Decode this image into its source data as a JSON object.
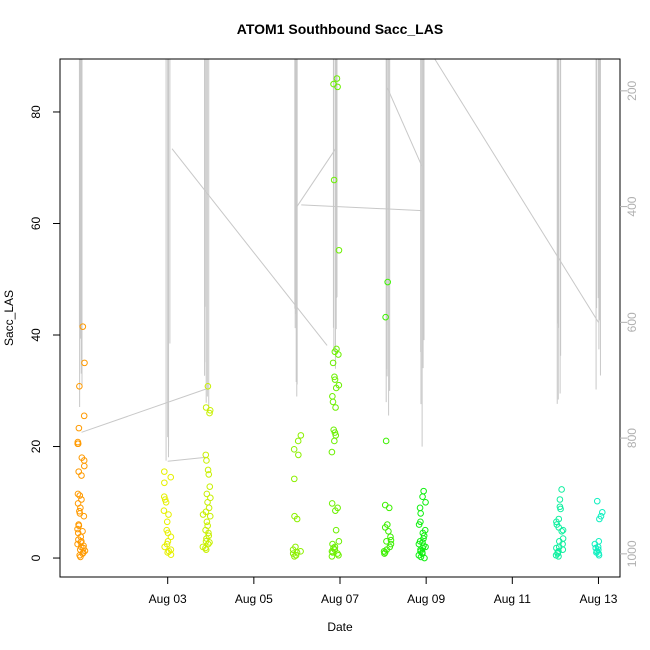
{
  "chart_data": {
    "type": "scatter",
    "title": "ATOM1 Southbound Sacc_LAS",
    "xlabel": "Date",
    "ylabel": "Sacc_LAS",
    "xlim": [
      "2016-07-31T12:00",
      "2016-08-13T12:00"
    ],
    "ylim": [
      -3.4,
      89.5
    ],
    "y_ticks": [
      0,
      20,
      40,
      60,
      80
    ],
    "x_ticks": [
      {
        "label": "Aug 03",
        "date": "2016-08-03"
      },
      {
        "label": "Aug 05",
        "date": "2016-08-05"
      },
      {
        "label": "Aug 07",
        "date": "2016-08-07"
      },
      {
        "label": "Aug 09",
        "date": "2016-08-09"
      },
      {
        "label": "Aug 11",
        "date": "2016-08-11"
      },
      {
        "label": "Aug 13",
        "date": "2016-08-13"
      }
    ],
    "secondary_axis": {
      "side": "right",
      "reversed": true,
      "ylim": [
        145,
        1040
      ],
      "ticks": [
        200,
        400,
        600,
        800,
        1000
      ],
      "color": "#b0b0b0"
    },
    "grid": false,
    "point_groups": [
      {
        "date": "2016-08-01",
        "color": "#ff9a00",
        "y_values": [
          41.5,
          35,
          30.8,
          25.5,
          23.3,
          20.8,
          20.5,
          20.5,
          18,
          17.5,
          16.5,
          15.5,
          14.8,
          11.5,
          11.2,
          10.5,
          9.8,
          9,
          8.4,
          8,
          7.5,
          6,
          5.8,
          5.2,
          4.8,
          4.5,
          3.8,
          3.3,
          3,
          2.8,
          2.5,
          2.2,
          2,
          1.8,
          1.5,
          1.3,
          1,
          0.8,
          0.5,
          0.2
        ]
      },
      {
        "date": "2016-08-03",
        "color": "#e6f000",
        "y_values": [
          15.5,
          14.5,
          13.5,
          11,
          10.5,
          10,
          8.5,
          7.8,
          6.5,
          5,
          4.5,
          3.8,
          3,
          2.5,
          2,
          1.5,
          1.2,
          1,
          0.6
        ]
      },
      {
        "date": "2016-08-03.9",
        "color": "#c8f000",
        "y_values": [
          30.8,
          27,
          26.5,
          26,
          18.5,
          17.5,
          15.8,
          15,
          12.8,
          11.5,
          10.8,
          10,
          9,
          8.3,
          7.8,
          7.5,
          6.5,
          5.8,
          5,
          4.5,
          4,
          3.5,
          3,
          2.8,
          2.5,
          2,
          1.8,
          1.5
        ]
      },
      {
        "date": "2016-08-06",
        "color": "#8cf000",
        "y_values": [
          22,
          21,
          19.5,
          18.5,
          14.2,
          7.5,
          7,
          2,
          1.5,
          1.2,
          1,
          0.8,
          0.5,
          0.3
        ]
      },
      {
        "date": "2016-08-06.9",
        "color": "#6cf000",
        "y_values": [
          86,
          85,
          84.5,
          67.8,
          55.2,
          37.5,
          37,
          36.5,
          35,
          32.5,
          32,
          31,
          30.5,
          29,
          28,
          27,
          23,
          22.5,
          22,
          21,
          19,
          9.8,
          9,
          8.5,
          5,
          3,
          2.5,
          2,
          1.8,
          1.5,
          1.2,
          1,
          0.8,
          0.5,
          0.3
        ]
      },
      {
        "date": "2016-08-08.1",
        "color": "#3cf000",
        "y_values": [
          49.5,
          43.2,
          21,
          9.5,
          9,
          6,
          5.5,
          4.8,
          3.8,
          3.2,
          3,
          2.5,
          2,
          1.5,
          1.2,
          1,
          0.8
        ]
      },
      {
        "date": "2016-08-08.9",
        "color": "#10f010",
        "y_values": [
          12,
          11,
          10,
          9,
          8,
          6.5,
          6,
          5,
          4.5,
          4,
          3.5,
          3,
          2.8,
          2.5,
          2.2,
          2,
          1.8,
          1.5,
          1.2,
          1,
          0.8,
          0.5,
          0.2,
          0
        ]
      },
      {
        "date": "2016-08-12.1",
        "color": "#10f0a0",
        "y_values": [
          12.3,
          10.5,
          9.2,
          8.8,
          7,
          6.5,
          6,
          5.5,
          5,
          4.8,
          3.5,
          3,
          2.5,
          2,
          1.8,
          1.5,
          1.2,
          1,
          0.8,
          0.5,
          0.3
        ]
      },
      {
        "date": "2016-08-13",
        "color": "#10f0c0",
        "y_values": [
          10.2,
          8.2,
          7.5,
          7,
          3,
          2.5,
          2,
          1.8,
          1.5,
          1.2,
          1,
          0.8,
          0.5
        ]
      }
    ],
    "secondary_series": {
      "color": "#c8c8c8",
      "spikes": [
        {
          "date": "2016-08-01",
          "top": 145,
          "bottom": 800
        },
        {
          "date": "2016-08-03",
          "top": 145,
          "bottom": 850
        },
        {
          "date": "2016-08-03.9",
          "top": 145,
          "bottom": 790
        },
        {
          "date": "2016-08-06",
          "top": 145,
          "bottom": 780
        },
        {
          "date": "2016-08-06.9",
          "top": 145,
          "bottom": 700
        },
        {
          "date": "2016-08-08.1",
          "top": 145,
          "bottom": 790
        },
        {
          "date": "2016-08-08.9",
          "top": 145,
          "bottom": 820
        },
        {
          "date": "2016-08-12.1",
          "top": 145,
          "bottom": 820
        },
        {
          "date": "2016-08-13",
          "top": 145,
          "bottom": 750
        }
      ],
      "connectors": [
        [
          {
            "date": "2016-08-01",
            "v": 790
          },
          {
            "date": "2016-08-03.9",
            "v": 715
          }
        ],
        [
          {
            "date": "2016-08-03",
            "v": 840
          },
          {
            "date": "2016-08-03.9",
            "v": 833
          }
        ],
        [
          {
            "date": "2016-08-03.1",
            "v": 300
          },
          {
            "date": "2016-08-06.7",
            "v": 640
          }
        ],
        [
          {
            "date": "2016-08-06",
            "v": 400
          },
          {
            "date": "2016-08-06.9",
            "v": 300
          }
        ],
        [
          {
            "date": "2016-08-06.1",
            "v": 397
          },
          {
            "date": "2016-08-08.9",
            "v": 407
          }
        ],
        [
          {
            "date": "2016-08-08.1",
            "v": 195
          },
          {
            "date": "2016-08-08.9",
            "v": 330
          }
        ],
        [
          {
            "date": "2016-08-09.2",
            "v": 145
          },
          {
            "date": "2016-08-13",
            "v": 600
          }
        ]
      ]
    }
  }
}
